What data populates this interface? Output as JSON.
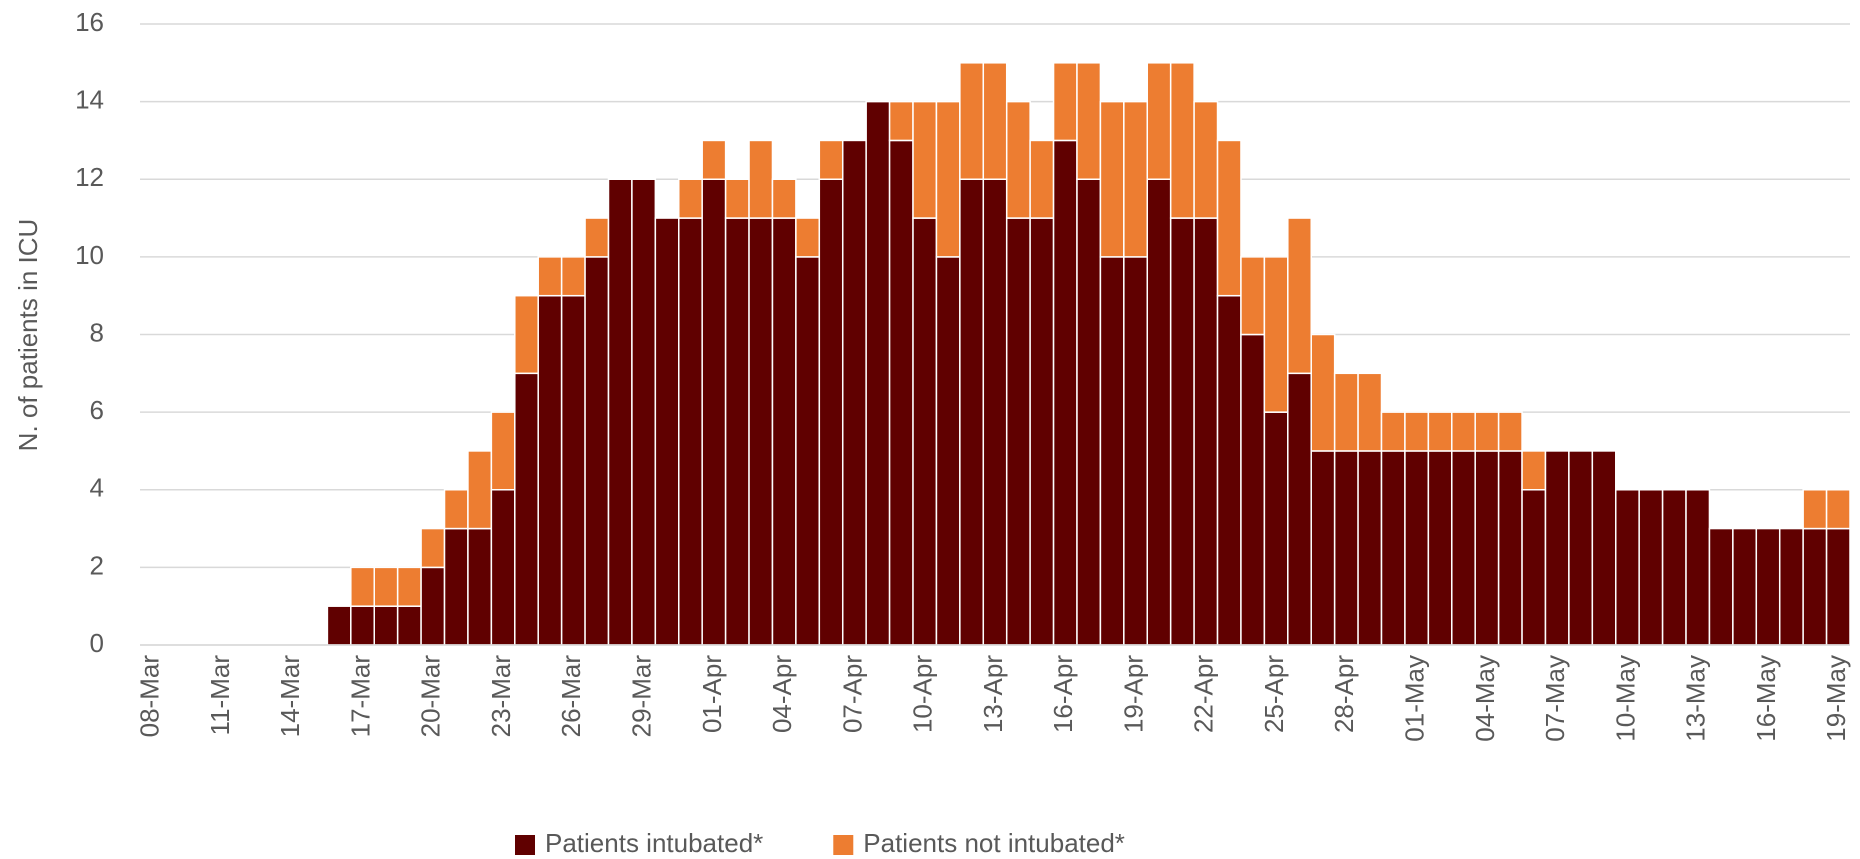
{
  "chart_data": {
    "type": "stacked_bar",
    "ylabel": "N. of patients in ICU",
    "categories": [
      "08-Mar",
      null,
      null,
      "11-Mar",
      null,
      null,
      "14-Mar",
      null,
      null,
      "17-Mar",
      null,
      null,
      "20-Mar",
      null,
      null,
      "23-Mar",
      null,
      null,
      "26-Mar",
      null,
      null,
      "29-Mar",
      null,
      null,
      "01-Apr",
      null,
      null,
      "04-Apr",
      null,
      null,
      "07-Apr",
      null,
      null,
      "10-Apr",
      null,
      null,
      "13-Apr",
      null,
      null,
      "16-Apr",
      null,
      null,
      "19-Apr",
      null,
      null,
      "22-Apr",
      null,
      null,
      "25-Apr",
      null,
      null,
      "28-Apr",
      null,
      null,
      "01-May",
      null,
      null,
      "04-May",
      null,
      null,
      "07-May",
      null,
      null,
      "10-May",
      null,
      null,
      "13-May",
      null,
      null,
      "16-May",
      null,
      null,
      "19-May"
    ],
    "series": [
      {
        "name": "Patients intubated*",
        "color": "#600000",
        "values": [
          0,
          0,
          0,
          0,
          0,
          0,
          0,
          0,
          1,
          1,
          1,
          1,
          2,
          3,
          3,
          4,
          7,
          9,
          9,
          10,
          12,
          12,
          11,
          11,
          12,
          11,
          11,
          11,
          10,
          12,
          13,
          14,
          13,
          11,
          10,
          12,
          12,
          11,
          11,
          13,
          12,
          10,
          10,
          12,
          11,
          11,
          9,
          8,
          6,
          7,
          5,
          5,
          5,
          5,
          5,
          5,
          5,
          5,
          5,
          4,
          5,
          5,
          5,
          4,
          4,
          4,
          4,
          3,
          3,
          3,
          3,
          3,
          3
        ]
      },
      {
        "name": "Patients not intubated*",
        "color": "#ed7d31",
        "values": [
          0,
          0,
          0,
          0,
          0,
          0,
          0,
          0,
          0,
          1,
          1,
          1,
          1,
          1,
          2,
          2,
          2,
          1,
          1,
          1,
          0,
          0,
          0,
          1,
          1,
          1,
          2,
          1,
          1,
          1,
          0,
          0,
          1,
          3,
          4,
          3,
          3,
          3,
          2,
          2,
          3,
          4,
          4,
          3,
          4,
          3,
          4,
          2,
          4,
          4,
          3,
          2,
          2,
          1,
          1,
          1,
          1,
          1,
          1,
          1,
          0,
          0,
          0,
          0,
          0,
          0,
          0,
          0,
          0,
          0,
          0,
          1,
          1
        ]
      }
    ],
    "ylim": [
      0,
      16
    ],
    "yticks": [
      0,
      2,
      4,
      6,
      8,
      10,
      12,
      14,
      16
    ],
    "grid": true,
    "legend": "bottom"
  }
}
